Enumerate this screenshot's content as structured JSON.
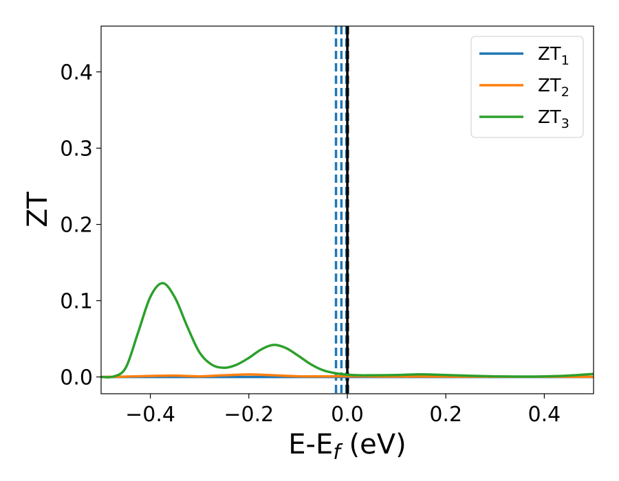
{
  "chart_data": {
    "type": "line",
    "xlabel": {
      "base": "E-E",
      "subscript": "f",
      "suffix": " (eV)"
    },
    "ylabel": "ZT",
    "xlim": [
      -0.5,
      0.5
    ],
    "ylim": [
      -0.022,
      0.46
    ],
    "xticks": [
      -0.4,
      -0.2,
      0.0,
      0.2,
      0.4
    ],
    "xtick_labels": [
      "−0.4",
      "−0.2",
      "0.0",
      "0.2",
      "0.4"
    ],
    "yticks": [
      0.0,
      0.1,
      0.2,
      0.3,
      0.4
    ],
    "ytick_labels": [
      "0.0",
      "0.1",
      "0.2",
      "0.3",
      "0.4"
    ],
    "grid": false,
    "legend_position": "top-right",
    "series": [
      {
        "name": "ZT",
        "subscript": "1",
        "color": "#1f77b4",
        "x": [
          -0.5,
          0.5
        ],
        "y": [
          0.0,
          0.0
        ]
      },
      {
        "name": "ZT",
        "subscript": "2",
        "color": "#ff7f0e",
        "x": [
          -0.5,
          -0.45,
          -0.4,
          -0.35,
          -0.3,
          -0.25,
          -0.2,
          -0.15,
          -0.1,
          -0.05,
          0.0,
          0.05,
          0.1,
          0.15,
          0.2,
          0.25,
          0.3,
          0.35,
          0.4,
          0.45,
          0.5
        ],
        "y": [
          0.0,
          0.0005,
          0.0013,
          0.0018,
          0.0008,
          0.0022,
          0.0033,
          0.0022,
          0.0009,
          0.0008,
          0.001,
          0.0007,
          0.0005,
          0.0006,
          0.0005,
          0.0004,
          0.0003,
          0.0003,
          0.0003,
          0.0002,
          0.0002
        ]
      },
      {
        "name": "ZT",
        "subscript": "3",
        "color": "#2ca02c",
        "x": [
          -0.5,
          -0.475,
          -0.45,
          -0.425,
          -0.4,
          -0.375,
          -0.35,
          -0.325,
          -0.3,
          -0.275,
          -0.25,
          -0.225,
          -0.2,
          -0.175,
          -0.15,
          -0.125,
          -0.1,
          -0.075,
          -0.05,
          -0.025,
          0.0,
          0.025,
          0.05,
          0.1,
          0.15,
          0.2,
          0.25,
          0.3,
          0.35,
          0.4,
          0.45,
          0.5
        ],
        "y": [
          0.0,
          0.0005,
          0.012,
          0.058,
          0.105,
          0.123,
          0.104,
          0.066,
          0.032,
          0.016,
          0.012,
          0.016,
          0.025,
          0.036,
          0.042,
          0.038,
          0.028,
          0.017,
          0.009,
          0.005,
          0.003,
          0.0022,
          0.0022,
          0.0025,
          0.0035,
          0.0025,
          0.0015,
          0.0008,
          0.0005,
          0.0008,
          0.0018,
          0.004
        ]
      }
    ],
    "vlines": [
      {
        "x": -0.023,
        "color": "#1f77b4",
        "style": "dashed"
      },
      {
        "x": -0.012,
        "color": "#1f77b4",
        "style": "dashed"
      },
      {
        "x": -0.002,
        "color": "#1f77b4",
        "style": "dashed"
      },
      {
        "x": 0.0,
        "color": "#000000",
        "style": "solid"
      },
      {
        "x": 0.001,
        "color": "#000000",
        "style": "dashed"
      }
    ]
  }
}
